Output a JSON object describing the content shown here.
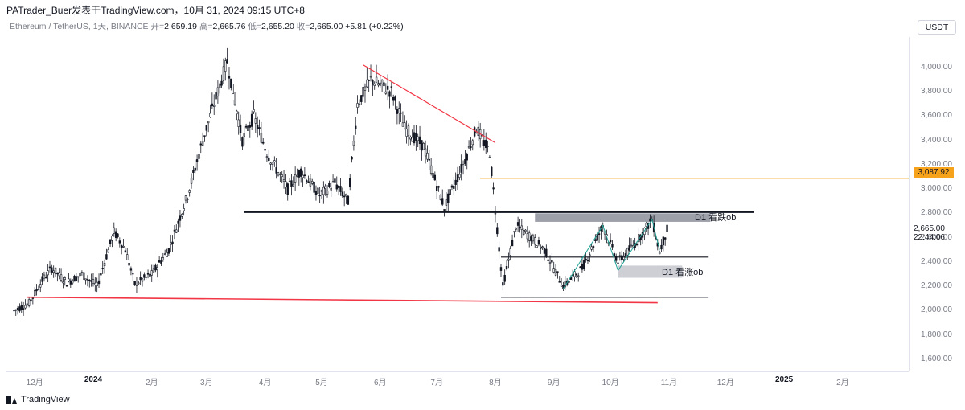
{
  "header": {
    "caption": "PATrader_Buer发表于TradingView.com，10月 31, 2024 09:15 UTC+8"
  },
  "legend": {
    "symbol": "Ethereum / TetherUS, 1天, BINANCE",
    "open_label": "开=",
    "open": "2,659.19",
    "high_label": "高=",
    "high": "2,665.76",
    "low_label": "低=",
    "low": "2,655.20",
    "close_label": "收=",
    "close": "2,665.00",
    "change": "+5.81 (+0.22%)"
  },
  "currency_button": "USDT",
  "price_labels": {
    "orange_level": "3,087.92",
    "current_price": "2,665.00",
    "countdown": "22:44:06"
  },
  "annotations": {
    "bearish_ob": "D1 看跌ob",
    "bullish_ob": "D1 看涨ob"
  },
  "brand": "TradingView",
  "colors": {
    "up": "#26a69a",
    "candle": "#131722",
    "orange": "#f7a21b",
    "red": "#f23645",
    "channel": "#26a69a",
    "ob_fill": "#9598a1"
  },
  "chart_data": {
    "type": "candlestick",
    "title": "Ethereum / TetherUS, 1天, BINANCE",
    "ylim": [
      1500,
      4250
    ],
    "y_ticks": [
      "4,000.00",
      "3,800.00",
      "3,600.00",
      "3,400.00",
      "3,200.00",
      "3,000.00",
      "2,800.00",
      "2,600.00",
      "2,400.00",
      "2,200.00",
      "2,000.00",
      "1,800.00",
      "1,600.00"
    ],
    "x_ticks": [
      {
        "label": "12月",
        "date": "2023-12-01"
      },
      {
        "label": "2024",
        "date": "2024-01-01",
        "bold": true
      },
      {
        "label": "2月",
        "date": "2024-02-01"
      },
      {
        "label": "3月",
        "date": "2024-03-01"
      },
      {
        "label": "4月",
        "date": "2024-04-01"
      },
      {
        "label": "5月",
        "date": "2024-05-01"
      },
      {
        "label": "6月",
        "date": "2024-06-01"
      },
      {
        "label": "7月",
        "date": "2024-07-01"
      },
      {
        "label": "8月",
        "date": "2024-08-01"
      },
      {
        "label": "9月",
        "date": "2024-09-01"
      },
      {
        "label": "10月",
        "date": "2024-10-01"
      },
      {
        "label": "11月",
        "date": "2024-11-01"
      },
      {
        "label": "12月",
        "date": "2024-12-01"
      },
      {
        "label": "2025",
        "date": "2025-01-01",
        "bold": true
      },
      {
        "label": "2月",
        "date": "2025-02-01"
      }
    ],
    "price_path": [
      [
        "2023-11-20",
        2000
      ],
      [
        "2023-11-28",
        2060
      ],
      [
        "2023-12-05",
        2250
      ],
      [
        "2023-12-10",
        2350
      ],
      [
        "2023-12-18",
        2230
      ],
      [
        "2023-12-26",
        2300
      ],
      [
        "2024-01-03",
        2200
      ],
      [
        "2024-01-12",
        2650
      ],
      [
        "2024-01-18",
        2500
      ],
      [
        "2024-01-23",
        2220
      ],
      [
        "2024-02-01",
        2300
      ],
      [
        "2024-02-10",
        2500
      ],
      [
        "2024-02-20",
        2950
      ],
      [
        "2024-02-28",
        3400
      ],
      [
        "2024-03-05",
        3700
      ],
      [
        "2024-03-12",
        4050
      ],
      [
        "2024-03-20",
        3400
      ],
      [
        "2024-03-26",
        3600
      ],
      [
        "2024-04-02",
        3300
      ],
      [
        "2024-04-13",
        3000
      ],
      [
        "2024-04-20",
        3150
      ],
      [
        "2024-04-30",
        2950
      ],
      [
        "2024-05-08",
        3050
      ],
      [
        "2024-05-15",
        2900
      ],
      [
        "2024-05-20",
        3700
      ],
      [
        "2024-05-27",
        3900
      ],
      [
        "2024-06-07",
        3800
      ],
      [
        "2024-06-14",
        3500
      ],
      [
        "2024-06-24",
        3350
      ],
      [
        "2024-07-05",
        2850
      ],
      [
        "2024-07-15",
        3200
      ],
      [
        "2024-07-22",
        3500
      ],
      [
        "2024-07-29",
        3300
      ],
      [
        "2024-08-05",
        2200
      ],
      [
        "2024-08-12",
        2700
      ],
      [
        "2024-08-20",
        2600
      ],
      [
        "2024-08-27",
        2500
      ],
      [
        "2024-09-06",
        2200
      ],
      [
        "2024-09-16",
        2350
      ],
      [
        "2024-09-27",
        2700
      ],
      [
        "2024-10-05",
        2400
      ],
      [
        "2024-10-14",
        2550
      ],
      [
        "2024-10-23",
        2750
      ],
      [
        "2024-10-27",
        2480
      ],
      [
        "2024-10-31",
        2665
      ]
    ],
    "lines": [
      {
        "kind": "support",
        "color": "#f23645",
        "from": [
          "2023-11-27",
          2110
        ],
        "to": [
          "2024-10-26",
          2065
        ]
      },
      {
        "kind": "resistance",
        "color": "#131722",
        "from": [
          "2024-03-21",
          2810
        ],
        "to": [
          "2024-12-16",
          2810
        ]
      },
      {
        "kind": "downtrend",
        "color": "#f23645",
        "from": [
          "2024-05-23",
          4020
        ],
        "to": [
          "2024-08-01",
          3380
        ]
      },
      {
        "kind": "level",
        "color": "#f7a21b",
        "value": 3087.92,
        "from": "2024-07-24"
      },
      {
        "kind": "range_mid",
        "color": "#131722",
        "from": [
          "2024-08-04",
          2440
        ],
        "to": [
          "2024-11-22",
          2440
        ]
      },
      {
        "kind": "range_low",
        "color": "#131722",
        "from": [
          "2024-08-04",
          2110
        ],
        "to": [
          "2024-11-22",
          2110
        ]
      }
    ],
    "zones": [
      {
        "name": "D1 看跌ob",
        "from": "2024-08-22",
        "to": "2024-11-23",
        "low": 2730,
        "high": 2800
      },
      {
        "name": "D1 看涨ob",
        "from": "2024-10-05",
        "to": "2024-11-08",
        "low": 2270,
        "high": 2370
      }
    ],
    "legend": "none"
  }
}
